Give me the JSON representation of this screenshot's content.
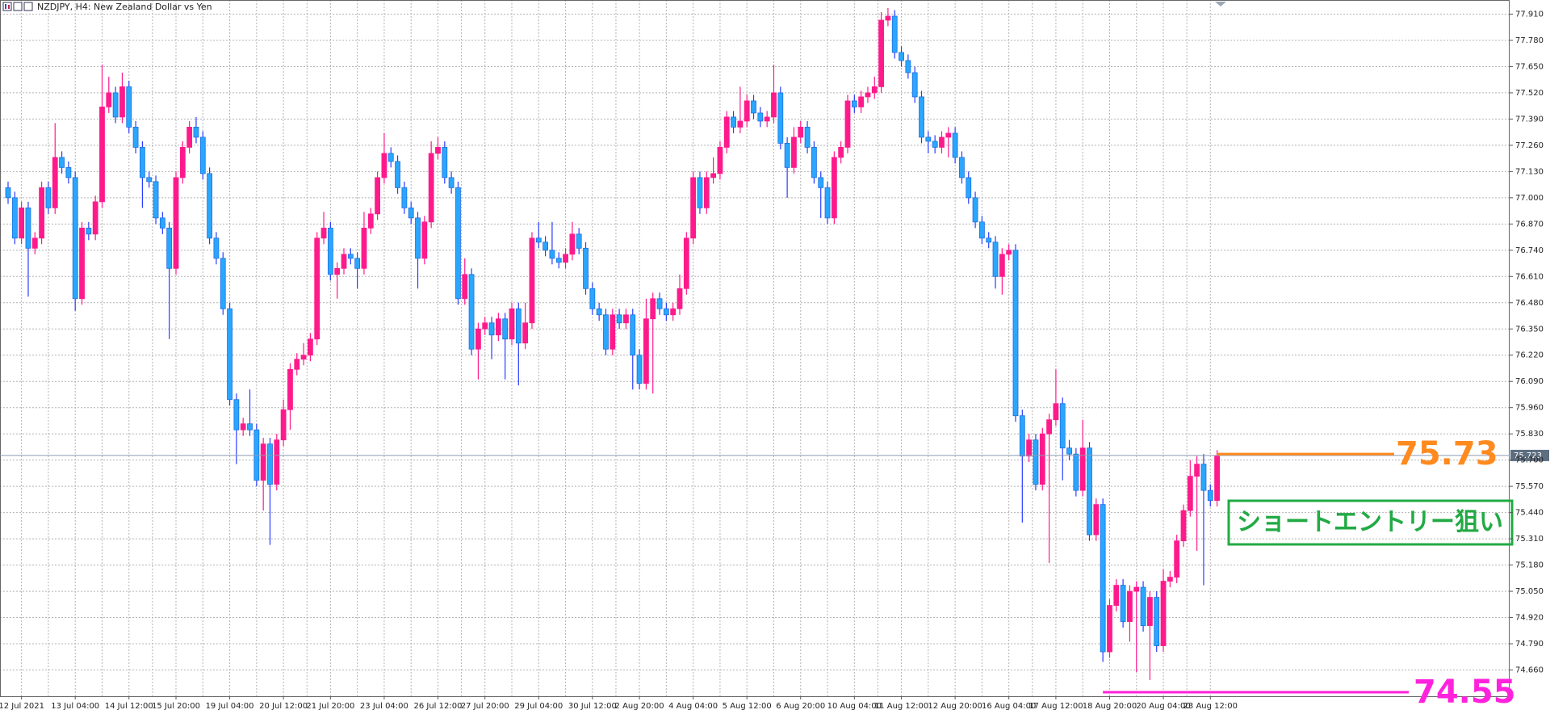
{
  "chart_data": {
    "type": "candlestick",
    "title": "NZDJPY, H4:  New Zealand Dollar vs Yen",
    "categories": [
      null,
      null,
      "12 Jul 2021",
      null,
      null,
      null,
      null,
      null,
      null,
      null,
      "13 Jul 04:00",
      null,
      null,
      null,
      null,
      null,
      null,
      null,
      "14 Jul 12:00",
      null,
      null,
      null,
      null,
      null,
      null,
      "15 Jul 20:00",
      null,
      null,
      null,
      null,
      null,
      null,
      null,
      "19 Jul 04:00",
      null,
      null,
      null,
      null,
      null,
      null,
      null,
      "20 Jul 12:00",
      null,
      null,
      null,
      null,
      null,
      null,
      "21 Jul 20:00",
      null,
      null,
      null,
      null,
      null,
      null,
      null,
      "23 Jul 04:00",
      null,
      null,
      null,
      null,
      null,
      null,
      null,
      "26 Jul 12:00",
      null,
      null,
      null,
      null,
      null,
      null,
      "27 Jul 20:00",
      null,
      null,
      null,
      null,
      null,
      null,
      null,
      "29 Jul 04:00",
      null,
      null,
      null,
      null,
      null,
      null,
      null,
      "30 Jul 12:00",
      null,
      null,
      null,
      null,
      null,
      null,
      "2 Aug 20:00",
      null,
      null,
      null,
      null,
      null,
      null,
      null,
      "4 Aug 04:00",
      null,
      null,
      null,
      null,
      null,
      null,
      null,
      "5 Aug 12:00",
      null,
      null,
      null,
      null,
      null,
      null,
      null,
      "6 Aug 20:00",
      null,
      null,
      null,
      null,
      null,
      null,
      null,
      "10 Aug 04:00",
      null,
      null,
      null,
      null,
      null,
      null,
      "11 Aug 12:00",
      null,
      null,
      null,
      null,
      null,
      null,
      null,
      "12 Aug 20:00",
      null,
      null,
      null,
      null,
      null,
      null,
      null,
      "16 Aug 04:00",
      null,
      null,
      null,
      null,
      null,
      null,
      "17 Aug 12:00",
      null,
      null,
      null,
      null,
      null,
      null,
      null,
      "18 Aug 20:00",
      null,
      null,
      null,
      null,
      null,
      null,
      null,
      "20 Aug 04:00",
      null,
      null,
      null,
      null,
      null,
      null,
      "23 Aug 12:00",
      null
    ],
    "open": [
      77.05,
      77.0,
      76.8,
      76.95,
      76.75,
      76.8,
      77.05,
      76.95,
      77.2,
      77.15,
      77.1,
      76.5,
      76.85,
      76.82,
      76.98,
      77.45,
      77.52,
      77.4,
      77.55,
      77.35,
      77.25,
      77.1,
      77.08,
      76.9,
      76.85,
      76.65,
      77.1,
      77.25,
      77.35,
      77.3,
      77.12,
      76.8,
      76.7,
      76.45,
      76.0,
      75.85,
      75.88,
      75.85,
      75.6,
      75.78,
      75.58,
      75.8,
      75.95,
      76.15,
      76.2,
      76.22,
      76.3,
      76.8,
      76.85,
      76.62,
      76.65,
      76.72,
      76.7,
      76.65,
      76.85,
      76.92,
      77.1,
      77.22,
      77.18,
      77.05,
      76.95,
      76.9,
      76.7,
      76.88,
      77.22,
      77.25,
      77.1,
      77.05,
      76.5,
      76.62,
      76.25,
      76.35,
      76.38,
      76.32,
      76.4,
      76.3,
      76.45,
      76.28,
      76.38,
      76.8,
      76.78,
      76.74,
      76.7,
      76.68,
      76.72,
      76.82,
      76.75,
      76.55,
      76.45,
      76.42,
      76.25,
      76.42,
      76.38,
      76.42,
      76.22,
      76.08,
      76.4,
      76.5,
      76.45,
      76.42,
      76.45,
      76.55,
      76.8,
      77.1,
      76.95,
      77.1,
      77.12,
      77.25,
      77.4,
      77.35,
      77.38,
      77.48,
      77.42,
      77.38,
      77.4,
      77.52,
      77.27,
      77.15,
      77.3,
      77.35,
      77.25,
      77.1,
      77.05,
      76.9,
      77.2,
      77.25,
      77.48,
      77.45,
      77.5,
      77.52,
      77.55,
      77.88,
      77.9,
      77.72,
      77.68,
      77.62,
      77.5,
      77.3,
      77.28,
      77.25,
      77.3,
      77.32,
      77.2,
      77.1,
      77.0,
      76.88,
      76.8,
      76.78,
      76.61,
      76.72,
      76.74,
      75.92,
      75.72,
      75.8,
      75.58,
      75.83,
      75.9,
      75.98,
      75.76,
      75.73,
      75.55,
      75.76,
      75.33,
      75.48,
      74.75,
      74.98,
      75.08,
      74.9,
      75.05,
      75.07,
      74.88,
      75.02,
      74.78,
      75.1,
      75.12,
      75.3,
      75.45,
      75.62,
      75.68,
      75.55,
      75.5
    ],
    "high": [
      77.08,
      77.03,
      76.98,
      76.98,
      76.83,
      77.08,
      77.08,
      77.37,
      77.23,
      77.18,
      77.13,
      76.88,
      76.88,
      77.01,
      77.66,
      77.6,
      77.55,
      77.62,
      77.58,
      77.38,
      77.28,
      77.13,
      77.11,
      76.93,
      76.88,
      77.13,
      77.28,
      77.38,
      77.4,
      77.33,
      77.15,
      76.83,
      76.73,
      76.48,
      76.03,
      75.91,
      76.05,
      75.88,
      75.81,
      75.81,
      75.83,
      76.0,
      76.18,
      76.23,
      76.28,
      76.33,
      76.83,
      76.93,
      76.88,
      76.68,
      76.75,
      76.75,
      76.73,
      76.93,
      76.95,
      77.13,
      77.32,
      77.25,
      77.21,
      77.08,
      76.98,
      76.93,
      76.91,
      77.28,
      77.3,
      77.28,
      77.13,
      77.08,
      76.7,
      76.65,
      76.38,
      76.41,
      76.41,
      76.43,
      76.43,
      76.48,
      76.48,
      76.48,
      76.83,
      76.88,
      76.81,
      76.88,
      76.73,
      76.75,
      76.88,
      76.85,
      76.78,
      76.58,
      76.48,
      76.45,
      76.45,
      76.45,
      76.45,
      76.45,
      76.25,
      76.5,
      76.53,
      76.53,
      76.48,
      76.48,
      76.62,
      76.83,
      77.13,
      77.13,
      77.13,
      77.2,
      77.28,
      77.43,
      77.43,
      77.55,
      77.51,
      77.51,
      77.45,
      77.43,
      77.66,
      77.55,
      77.3,
      77.35,
      77.38,
      77.38,
      77.28,
      77.13,
      77.08,
      77.23,
      77.28,
      77.51,
      77.51,
      77.53,
      77.55,
      77.6,
      77.92,
      77.94,
      77.93,
      77.75,
      77.71,
      77.65,
      77.53,
      77.33,
      77.31,
      77.33,
      77.35,
      77.35,
      77.23,
      77.13,
      77.03,
      76.91,
      76.83,
      76.81,
      76.75,
      76.77,
      76.77,
      75.95,
      75.83,
      75.83,
      75.86,
      75.93,
      76.15,
      76.01,
      75.8,
      75.76,
      75.9,
      75.79,
      75.51,
      75.51,
      75.01,
      75.11,
      75.11,
      75.08,
      75.1,
      75.1,
      75.05,
      75.05,
      75.16,
      75.15,
      75.33,
      75.48,
      75.7,
      75.72,
      75.73,
      75.58,
      75.75
    ],
    "low": [
      76.97,
      76.77,
      76.77,
      76.51,
      76.72,
      76.77,
      76.92,
      76.92,
      77.12,
      77.07,
      76.44,
      76.47,
      76.79,
      76.79,
      76.95,
      77.42,
      77.37,
      77.37,
      77.32,
      77.22,
      76.95,
      77.05,
      76.87,
      76.82,
      76.3,
      76.62,
      77.07,
      77.22,
      77.27,
      77.09,
      76.77,
      76.67,
      76.42,
      75.97,
      75.68,
      75.82,
      75.82,
      75.57,
      75.45,
      75.28,
      75.55,
      75.77,
      75.85,
      76.12,
      76.17,
      76.19,
      76.27,
      76.77,
      76.59,
      76.5,
      76.62,
      76.67,
      76.55,
      76.62,
      76.82,
      76.89,
      77.07,
      77.15,
      77.02,
      76.92,
      76.87,
      76.55,
      76.67,
      76.85,
      77.19,
      77.07,
      77.02,
      76.47,
      76.47,
      76.22,
      76.1,
      76.32,
      76.2,
      76.29,
      76.1,
      76.27,
      76.07,
      76.25,
      76.35,
      76.75,
      76.71,
      76.67,
      76.65,
      76.65,
      76.69,
      76.72,
      76.52,
      76.42,
      76.39,
      76.22,
      76.22,
      76.35,
      76.35,
      76.05,
      76.05,
      76.05,
      76.03,
      76.42,
      76.39,
      76.39,
      76.42,
      76.52,
      76.77,
      76.92,
      76.92,
      77.07,
      77.09,
      77.22,
      77.32,
      77.32,
      77.35,
      77.39,
      77.35,
      77.35,
      77.37,
      77.24,
      77.0,
      77.12,
      77.27,
      77.22,
      77.07,
      76.9,
      76.87,
      76.87,
      77.17,
      77.22,
      77.42,
      77.42,
      77.47,
      77.49,
      77.52,
      77.85,
      77.69,
      77.65,
      77.59,
      77.47,
      77.27,
      77.22,
      77.22,
      77.22,
      77.2,
      77.17,
      77.07,
      76.97,
      76.85,
      76.77,
      76.75,
      76.55,
      76.52,
      76.69,
      75.89,
      75.39,
      75.69,
      75.55,
      75.55,
      75.19,
      75.87,
      75.6,
      75.7,
      75.52,
      75.52,
      75.3,
      75.3,
      74.7,
      74.72,
      74.95,
      74.87,
      74.8,
      74.65,
      74.85,
      74.61,
      74.75,
      74.75,
      75.07,
      75.09,
      75.27,
      75.42,
      75.25,
      75.08,
      75.47,
      75.47
    ],
    "close": [
      77.0,
      76.8,
      76.95,
      76.75,
      76.8,
      77.05,
      76.95,
      77.2,
      77.15,
      77.1,
      76.5,
      76.85,
      76.82,
      76.98,
      77.45,
      77.52,
      77.4,
      77.55,
      77.35,
      77.25,
      77.1,
      77.08,
      76.9,
      76.85,
      76.65,
      77.1,
      77.25,
      77.35,
      77.3,
      77.12,
      76.8,
      76.7,
      76.45,
      76.0,
      75.85,
      75.88,
      75.85,
      75.6,
      75.78,
      75.58,
      75.8,
      75.95,
      76.15,
      76.2,
      76.22,
      76.3,
      76.8,
      76.85,
      76.62,
      76.65,
      76.72,
      76.7,
      76.65,
      76.85,
      76.92,
      77.1,
      77.22,
      77.18,
      77.05,
      76.95,
      76.9,
      76.7,
      76.88,
      77.22,
      77.25,
      77.1,
      77.05,
      76.5,
      76.62,
      76.25,
      76.35,
      76.38,
      76.32,
      76.4,
      76.3,
      76.45,
      76.28,
      76.38,
      76.8,
      76.78,
      76.74,
      76.7,
      76.68,
      76.72,
      76.82,
      76.75,
      76.55,
      76.45,
      76.42,
      76.25,
      76.42,
      76.38,
      76.42,
      76.22,
      76.08,
      76.4,
      76.5,
      76.45,
      76.42,
      76.45,
      76.55,
      76.8,
      77.1,
      76.95,
      77.1,
      77.12,
      77.25,
      77.4,
      77.35,
      77.38,
      77.48,
      77.42,
      77.38,
      77.4,
      77.52,
      77.27,
      77.15,
      77.3,
      77.35,
      77.25,
      77.1,
      77.05,
      76.9,
      77.2,
      77.25,
      77.48,
      77.45,
      77.5,
      77.52,
      77.55,
      77.88,
      77.9,
      77.72,
      77.68,
      77.62,
      77.5,
      77.3,
      77.28,
      77.25,
      77.3,
      77.32,
      77.2,
      77.1,
      77.0,
      76.88,
      76.8,
      76.78,
      76.61,
      76.72,
      76.74,
      75.92,
      75.72,
      75.8,
      75.58,
      75.83,
      75.9,
      75.98,
      75.76,
      75.73,
      75.55,
      75.76,
      75.33,
      75.48,
      74.75,
      74.98,
      75.08,
      74.9,
      75.05,
      75.07,
      74.88,
      75.02,
      74.78,
      75.1,
      75.12,
      75.3,
      75.45,
      75.62,
      75.68,
      75.55,
      75.5,
      75.72
    ],
    "up_color": "#ff1a8c",
    "down_color": "#2aa6ff",
    "ylim": [
      74.53,
      77.98
    ],
    "yticks": [
      {
        "value": 74.66,
        "label": "74.660"
      },
      {
        "value": 74.79,
        "label": "74.790"
      },
      {
        "value": 74.92,
        "label": "74.920"
      },
      {
        "value": 75.05,
        "label": "75.050"
      },
      {
        "value": 75.18,
        "label": "75.180"
      },
      {
        "value": 75.31,
        "label": "75.310"
      },
      {
        "value": 75.44,
        "label": "75.440"
      },
      {
        "value": 75.57,
        "label": "75.570"
      },
      {
        "value": 75.7,
        "label": "75.700"
      },
      {
        "value": 75.83,
        "label": "75.830"
      },
      {
        "value": 75.96,
        "label": "75.960"
      },
      {
        "value": 76.09,
        "label": "76.090"
      },
      {
        "value": 76.22,
        "label": "76.220"
      },
      {
        "value": 76.35,
        "label": "76.350"
      },
      {
        "value": 76.48,
        "label": "76.480"
      },
      {
        "value": 76.61,
        "label": "76.610"
      },
      {
        "value": 76.74,
        "label": "76.740"
      },
      {
        "value": 76.87,
        "label": "76.870"
      },
      {
        "value": 77.0,
        "label": "77.000"
      },
      {
        "value": 77.13,
        "label": "77.130"
      },
      {
        "value": 77.26,
        "label": "77.260"
      },
      {
        "value": 77.39,
        "label": "77.390"
      },
      {
        "value": 77.52,
        "label": "77.520"
      },
      {
        "value": 77.65,
        "label": "77.650"
      },
      {
        "value": 77.78,
        "label": "77.780"
      },
      {
        "value": 77.91,
        "label": "77.910"
      }
    ],
    "grid": true,
    "last_price": 75.723,
    "levels": [
      {
        "value": 75.73,
        "color": "#ff8a1e"
      },
      {
        "value": 74.55,
        "color": "#ff22dd"
      }
    ],
    "note": {
      "text": "ショートエントリー狙い",
      "color": "#22aa44"
    }
  }
}
